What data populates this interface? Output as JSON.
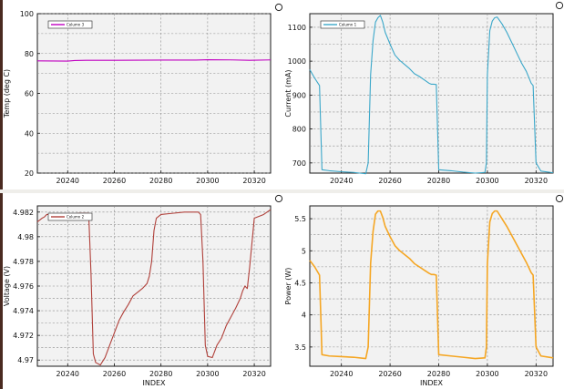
{
  "chart_data": [
    {
      "type": "line",
      "id": "temp",
      "ylabel": "Temp (deg C)",
      "xlabel": "",
      "xlim": [
        20227,
        20327
      ],
      "ylim": [
        20,
        100
      ],
      "xticks": [
        20240,
        20260,
        20280,
        20300,
        20320
      ],
      "yticks": [
        20,
        40,
        60,
        80,
        100
      ],
      "ytick_labels": [
        "20",
        "40",
        "60",
        "80",
        "100"
      ],
      "series": [
        {
          "name": "Column 3",
          "color": "#c000c0",
          "x": [
            20227,
            20240,
            20243,
            20248,
            20260,
            20280,
            20295,
            20300,
            20310,
            20318,
            20327
          ],
          "y": [
            76.3,
            76.2,
            76.5,
            76.6,
            76.6,
            76.7,
            76.7,
            76.9,
            76.8,
            76.6,
            76.8
          ]
        }
      ]
    },
    {
      "type": "line",
      "id": "current",
      "ylabel": "Current (mA)",
      "xlabel": "",
      "xlim": [
        20227,
        20327
      ],
      "ylim": [
        670,
        1140
      ],
      "xticks": [
        20240,
        20260,
        20280,
        20300,
        20320
      ],
      "yticks": [
        700,
        800,
        900,
        1000,
        1100
      ],
      "ytick_labels": [
        "700",
        "800",
        "900",
        "1000",
        "1100"
      ],
      "series": [
        {
          "name": "Column 1",
          "color": "#3aa7c9",
          "x": [
            20227,
            20229,
            20231,
            20231.6,
            20232,
            20235,
            20240,
            20245,
            20250,
            20251,
            20252,
            20253,
            20254,
            20255,
            20256,
            20257,
            20258,
            20260,
            20262,
            20264,
            20266,
            20268,
            20270,
            20272,
            20274,
            20276,
            20277,
            20278,
            20279,
            20280,
            20285,
            20290,
            20295,
            20299,
            20299.6,
            20300,
            20301,
            20302,
            20303,
            20304,
            20306,
            20308,
            20310,
            20312,
            20314,
            20316,
            20318,
            20318.8,
            20320,
            20322,
            20327
          ],
          "y": [
            975,
            950,
            928,
            780,
            680,
            677,
            674,
            672,
            668,
            700,
            960,
            1060,
            1115,
            1128,
            1135,
            1115,
            1085,
            1050,
            1018,
            1002,
            990,
            978,
            963,
            955,
            945,
            935,
            932,
            932,
            931,
            680,
            677,
            673,
            670,
            672,
            700,
            960,
            1090,
            1118,
            1128,
            1130,
            1110,
            1085,
            1055,
            1025,
            995,
            970,
            935,
            928,
            700,
            676,
            671
          ]
        }
      ]
    },
    {
      "type": "line",
      "id": "voltage",
      "ylabel": "Voltage (V)",
      "xlabel": "INDEX",
      "xlim": [
        20227,
        20327
      ],
      "ylim": [
        4.9695,
        4.9825
      ],
      "xticks": [
        20240,
        20260,
        20280,
        20300,
        20320
      ],
      "yticks": [
        4.97,
        4.972,
        4.974,
        4.976,
        4.978,
        4.98,
        4.982
      ],
      "ytick_labels": [
        "4.97",
        "4.972",
        "4.974",
        "4.976",
        "4.978",
        "4.98",
        "4.982"
      ],
      "series": [
        {
          "name": "Column 2",
          "color": "#b0403a",
          "x": [
            20227,
            20229,
            20230,
            20231,
            20235,
            20240,
            20245,
            20249,
            20250,
            20251,
            20252,
            20254,
            20256,
            20258,
            20260,
            20262,
            20264,
            20266,
            20268,
            20270,
            20272,
            20274,
            20275,
            20276,
            20277,
            20278,
            20280,
            20285,
            20290,
            20296,
            20297,
            20298,
            20299,
            20300,
            20302,
            20304,
            20306,
            20308,
            20310,
            20312,
            20314,
            20315,
            20316,
            20317,
            20318,
            20320,
            20324,
            20327
          ],
          "y": [
            4.9812,
            4.9815,
            4.9816,
            4.9818,
            4.9818,
            4.9818,
            4.9819,
            4.9819,
            4.977,
            4.9705,
            4.9698,
            4.9696,
            4.9702,
            4.9712,
            4.9722,
            4.9732,
            4.9739,
            4.9745,
            4.9752,
            4.9755,
            4.9758,
            4.9762,
            4.9768,
            4.978,
            4.9805,
            4.9815,
            4.9818,
            4.9819,
            4.982,
            4.982,
            4.9818,
            4.978,
            4.9712,
            4.9703,
            4.9702,
            4.9712,
            4.9718,
            4.9728,
            4.9735,
            4.9742,
            4.975,
            4.9756,
            4.976,
            4.9758,
            4.9775,
            4.9815,
            4.9818,
            4.9822
          ]
        }
      ]
    },
    {
      "type": "line",
      "id": "power",
      "ylabel": "Power (W)",
      "xlabel": "INDEX",
      "xlim": [
        20227,
        20327
      ],
      "ylim": [
        3.2,
        5.7
      ],
      "xticks": [
        20240,
        20260,
        20280,
        20300,
        20320
      ],
      "yticks": [
        3.5,
        4,
        4.5,
        5,
        5.5
      ],
      "ytick_labels": [
        "3.5",
        "4",
        "4.5",
        "5",
        "5.5"
      ],
      "series": [
        {
          "name": "",
          "color": "#f5a623",
          "x": [
            20227,
            20229,
            20231,
            20231.6,
            20232,
            20235,
            20240,
            20245,
            20250,
            20251,
            20252,
            20253,
            20254,
            20255,
            20256,
            20257,
            20258,
            20260,
            20262,
            20264,
            20266,
            20268,
            20270,
            20272,
            20274,
            20276,
            20277,
            20278,
            20279,
            20280,
            20285,
            20290,
            20295,
            20299,
            20299.6,
            20300,
            20301,
            20302,
            20303,
            20304,
            20306,
            20308,
            20310,
            20312,
            20314,
            20316,
            20318,
            20318.8,
            20320,
            20322,
            20327
          ],
          "y": [
            4.85,
            4.75,
            4.62,
            3.9,
            3.38,
            3.36,
            3.35,
            3.34,
            3.32,
            3.5,
            4.8,
            5.3,
            5.57,
            5.62,
            5.62,
            5.52,
            5.38,
            5.22,
            5.08,
            5.0,
            4.94,
            4.88,
            4.8,
            4.75,
            4.7,
            4.65,
            4.63,
            4.63,
            4.62,
            3.38,
            3.36,
            3.34,
            3.32,
            3.33,
            3.5,
            4.8,
            5.45,
            5.58,
            5.62,
            5.62,
            5.5,
            5.38,
            5.24,
            5.1,
            4.96,
            4.82,
            4.66,
            4.62,
            3.5,
            3.36,
            3.33
          ]
        }
      ]
    }
  ]
}
